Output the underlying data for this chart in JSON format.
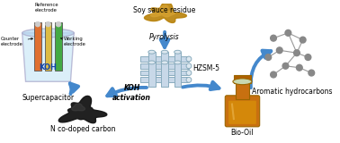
{
  "background_color": "#ffffff",
  "arrow_color": "#4488cc",
  "text_labels": {
    "soy_sauce": "Soy sauce residue",
    "pyrolysis": "Pyrolysis",
    "hzsm5": "HZSM-5",
    "aromatic": "Aromatic hydrocarbons",
    "bio_oil": "Bio-Oil",
    "n_carbon": "N co-doped carbon",
    "supercap": "Supercapacitor",
    "koh": "KOH",
    "koh_activation": "KOH\nactivation",
    "reference": "Reference\nelectrode",
    "counter": "Counter\nelectrode",
    "working": "Working\nelectrode"
  },
  "figsize": [
    3.78,
    1.6
  ],
  "dpi": 100
}
